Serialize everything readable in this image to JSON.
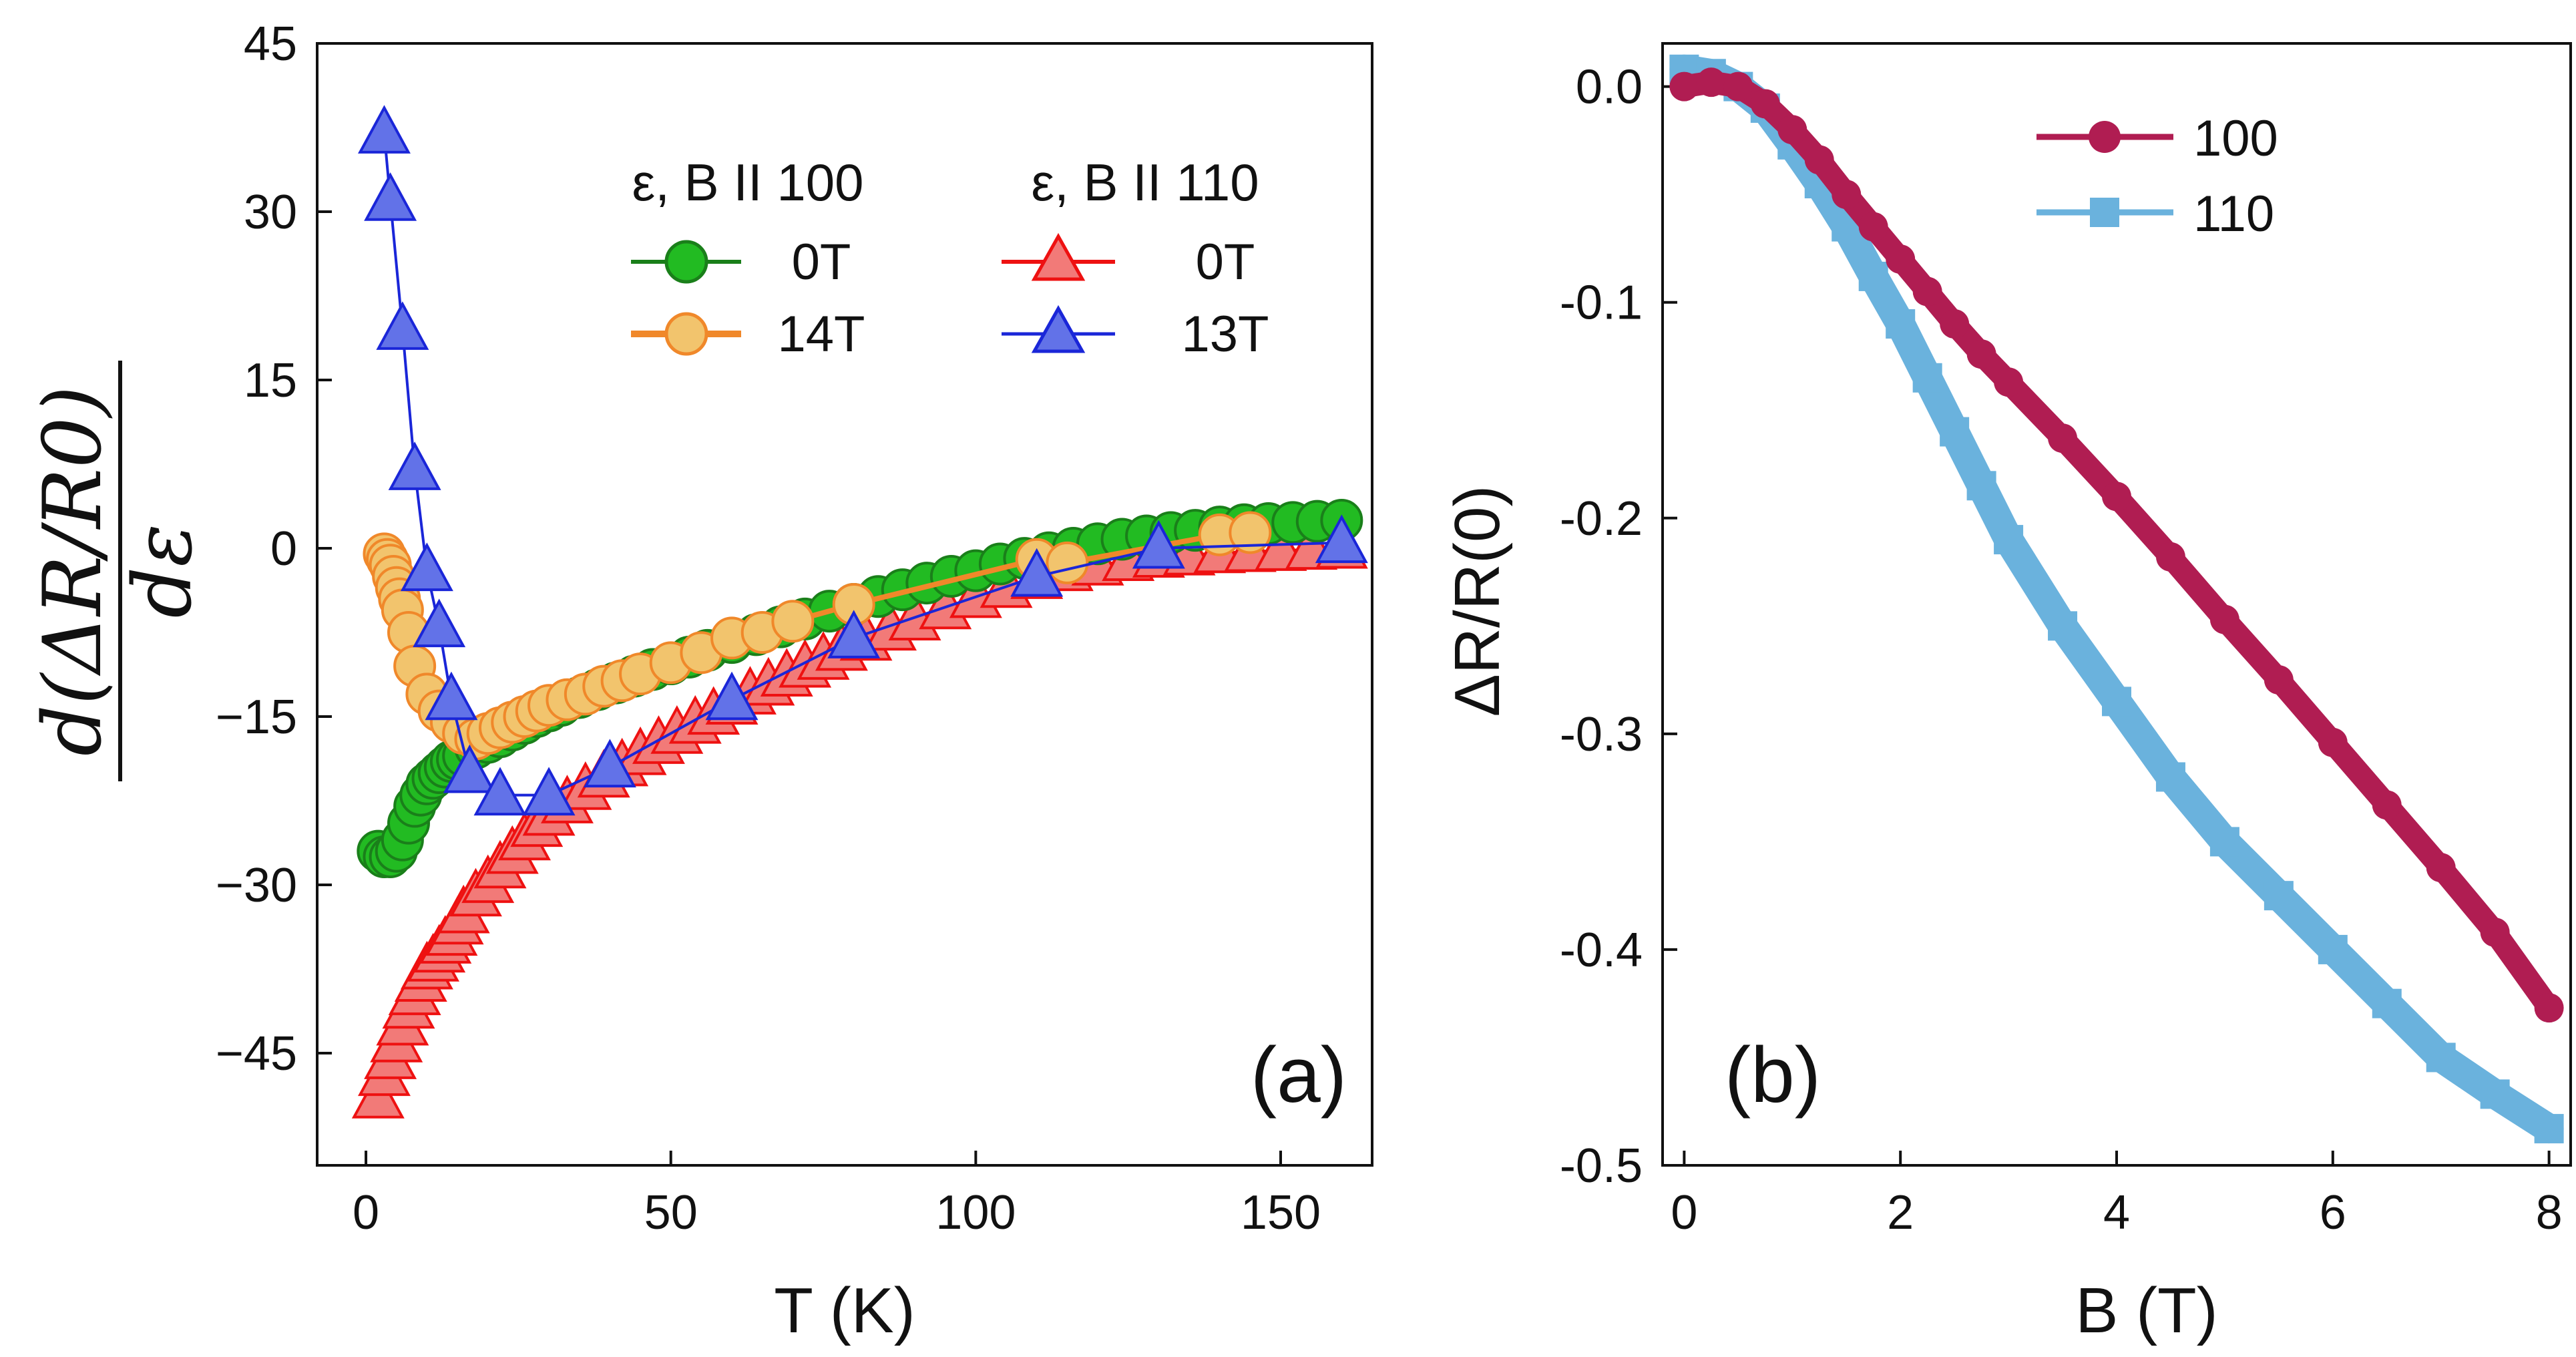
{
  "figure_labels": {
    "panel_a": "(a)",
    "panel_b": "(b)"
  },
  "chart_data": [
    {
      "panel": "(a)",
      "type": "line",
      "xlabel": "T (K)",
      "ylabel": "d(ΔR/R0)/dε",
      "ylabel_numerator": "d(ΔR/R0)",
      "ylabel_denominator": "dε",
      "xlim": [
        -8,
        165
      ],
      "ylim": [
        -55,
        45
      ],
      "xticks": [
        0,
        50,
        100,
        150
      ],
      "yticks": [
        45,
        30,
        15,
        0,
        -15,
        -30,
        -45
      ],
      "ytick_labels": [
        "45",
        "30",
        "15",
        "0",
        "−15",
        "−30",
        "−45"
      ],
      "legend_headers": [
        "ε, B II 100",
        "ε, B II 110"
      ],
      "series": [
        {
          "name": "0T",
          "group": "ε, B II 100",
          "color": "#22bb22",
          "edge": "#1a7f1a",
          "marker": "circle",
          "x": [
            2,
            3,
            4,
            5,
            6,
            7,
            8,
            9,
            10,
            11,
            12,
            13,
            14,
            15,
            16,
            18,
            20,
            22,
            24,
            26,
            28,
            30,
            32,
            35,
            38,
            41,
            44,
            47,
            50,
            53,
            56,
            60,
            64,
            68,
            72,
            76,
            80,
            84,
            88,
            92,
            96,
            100,
            104,
            108,
            112,
            116,
            120,
            124,
            128,
            132,
            136,
            140,
            144,
            148,
            152,
            156,
            160
          ],
          "y": [
            -27,
            -27.5,
            -27.5,
            -27,
            -26,
            -24.5,
            -23,
            -22,
            -21,
            -20.5,
            -20,
            -19.5,
            -19,
            -18.8,
            -18.5,
            -17.8,
            -17.3,
            -16.8,
            -16.2,
            -15.6,
            -15,
            -14.5,
            -14,
            -13.3,
            -12.6,
            -12,
            -11.4,
            -10.8,
            -10.3,
            -9.7,
            -9.1,
            -8.4,
            -7.7,
            -7,
            -6.3,
            -5.6,
            -5,
            -4.3,
            -3.7,
            -3.1,
            -2.5,
            -2,
            -1.4,
            -0.9,
            -0.4,
            0,
            0.4,
            0.8,
            1.1,
            1.4,
            1.6,
            1.9,
            2.1,
            2.2,
            2.3,
            2.4,
            2.5
          ]
        },
        {
          "name": "14T",
          "group": "ε, B II 100",
          "color": "#f2c46d",
          "edge": "#f0882a",
          "marker": "circle",
          "x": [
            3,
            3.5,
            4,
            4.5,
            5,
            5.5,
            6,
            7,
            8,
            10,
            12,
            14,
            16,
            18,
            20,
            22,
            24,
            26,
            28,
            30,
            33,
            36,
            39,
            42,
            45,
            50,
            55,
            60,
            65,
            70,
            80,
            110,
            115,
            140,
            145
          ],
          "y": [
            -0.5,
            -1,
            -1.5,
            -2.5,
            -3.5,
            -4.5,
            -5.5,
            -7.5,
            -10.5,
            -13,
            -14.5,
            -15.5,
            -16.5,
            -17,
            -16.5,
            -16,
            -15.5,
            -15,
            -14.5,
            -14,
            -13.5,
            -13,
            -12.3,
            -11.8,
            -11.2,
            -10.2,
            -9.3,
            -8,
            -7.5,
            -6.5,
            -5,
            -1,
            -1.3,
            1.2,
            1.4
          ]
        },
        {
          "name": "0T",
          "group": "ε, B II 110",
          "color": "#f27a78",
          "edge": "#ee1111",
          "marker": "triangle",
          "x": [
            2,
            3,
            4,
            5,
            6,
            7,
            8,
            9,
            10,
            11,
            12,
            13,
            14,
            15,
            16,
            18,
            20,
            22,
            24,
            26,
            28,
            30,
            33,
            36,
            39,
            42,
            45,
            48,
            51,
            54,
            57,
            60,
            63,
            66,
            69,
            72,
            75,
            78,
            82,
            86,
            90,
            95,
            100,
            105,
            110,
            115,
            120,
            125,
            130,
            135,
            140,
            145,
            150,
            155,
            160
          ],
          "y": [
            -49,
            -47,
            -45.5,
            -44,
            -42.5,
            -41,
            -39.8,
            -38.6,
            -37.5,
            -36.8,
            -36,
            -35.2,
            -34.5,
            -33.5,
            -32.5,
            -31,
            -29.8,
            -28.5,
            -27.2,
            -26,
            -24.8,
            -23.8,
            -22.7,
            -21.5,
            -20.4,
            -19.4,
            -18.4,
            -17.4,
            -16.5,
            -15.6,
            -14.8,
            -13.9,
            -13,
            -12.2,
            -11.4,
            -10.6,
            -9.9,
            -9.1,
            -8.2,
            -7.3,
            -6.4,
            -5.4,
            -4.4,
            -3.5,
            -2.7,
            -2,
            -1.5,
            -1.1,
            -0.8,
            -0.6,
            -0.4,
            -0.3,
            -0.2,
            -0.1,
            0
          ]
        },
        {
          "name": "13T",
          "group": "ε, B II 110",
          "color": "#6272e8",
          "edge": "#1a26d8",
          "marker": "triangle",
          "x": [
            3,
            4,
            6,
            8,
            10,
            12,
            14,
            17,
            22,
            30,
            40,
            60,
            80,
            110,
            130,
            160
          ],
          "y": [
            37,
            31,
            19.5,
            7,
            -2,
            -7,
            -13.5,
            -20,
            -22,
            -22,
            -19.5,
            -13.5,
            -8,
            -2.5,
            0,
            0.5
          ]
        }
      ]
    },
    {
      "panel": "(b)",
      "type": "line",
      "xlabel": "B (T)",
      "ylabel": "ΔR/R(0)",
      "xlim": [
        -0.2,
        8.2
      ],
      "ylim": [
        -0.5,
        0.02
      ],
      "xticks": [
        0,
        2,
        4,
        6,
        8
      ],
      "yticks": [
        0.0,
        -0.1,
        -0.2,
        -0.3,
        -0.4,
        -0.5
      ],
      "ytick_labels": [
        "0.0",
        "-0.1",
        "-0.2",
        "-0.3",
        "-0.4",
        "-0.5"
      ],
      "series": [
        {
          "name": "100",
          "color": "#b01d52",
          "marker": "circle",
          "x": [
            0,
            0.25,
            0.5,
            0.75,
            1.0,
            1.25,
            1.5,
            1.75,
            2.0,
            2.25,
            2.5,
            2.75,
            3.0,
            3.5,
            4.0,
            4.5,
            5.0,
            5.5,
            6.0,
            6.5,
            7.0,
            7.5,
            8.0
          ],
          "y": [
            0.0,
            0.002,
            0.0,
            -0.008,
            -0.02,
            -0.034,
            -0.05,
            -0.065,
            -0.08,
            -0.095,
            -0.11,
            -0.124,
            -0.137,
            -0.163,
            -0.19,
            -0.218,
            -0.247,
            -0.275,
            -0.304,
            -0.333,
            -0.362,
            -0.392,
            -0.427
          ]
        },
        {
          "name": "110",
          "color": "#6ab2dd",
          "marker": "square",
          "x": [
            0,
            0.25,
            0.5,
            0.75,
            1.0,
            1.25,
            1.5,
            1.75,
            2.0,
            2.25,
            2.5,
            2.75,
            3.0,
            3.5,
            4.0,
            4.5,
            5.0,
            5.5,
            6.0,
            6.5,
            7.0,
            7.5,
            8.0
          ],
          "y": [
            0.008,
            0.006,
            0.0,
            -0.01,
            -0.027,
            -0.045,
            -0.065,
            -0.088,
            -0.11,
            -0.135,
            -0.16,
            -0.185,
            -0.21,
            -0.25,
            -0.285,
            -0.32,
            -0.35,
            -0.375,
            -0.4,
            -0.425,
            -0.45,
            -0.467,
            -0.483
          ]
        }
      ]
    }
  ]
}
